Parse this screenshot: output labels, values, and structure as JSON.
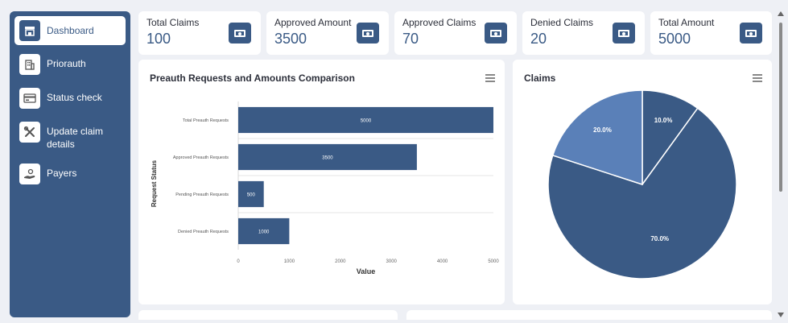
{
  "sidebar": {
    "items": [
      {
        "label": "Dashboard",
        "icon": "store-icon"
      },
      {
        "label": "Priorauth",
        "icon": "building-icon"
      },
      {
        "label": "Status check",
        "icon": "card-icon"
      },
      {
        "label": "Update claim details",
        "icon": "tools-icon"
      },
      {
        "label": "Payers",
        "icon": "hand-coin-icon"
      }
    ]
  },
  "kpis": [
    {
      "title": "Total Claims",
      "value": "100"
    },
    {
      "title": "Approved Amount",
      "value": "3500"
    },
    {
      "title": "Approved Claims",
      "value": "70"
    },
    {
      "title": "Denied Claims",
      "value": "20"
    },
    {
      "title": "Total Amount",
      "value": "5000"
    }
  ],
  "bar_card": {
    "title": "Preauth Requests and Amounts Comparison"
  },
  "pie_card": {
    "title": "Claims"
  },
  "colors": {
    "primary": "#3a5a85",
    "pie_light": "#5a80b8"
  },
  "chart_data": [
    {
      "type": "bar",
      "orientation": "horizontal",
      "title": "Preauth Requests and Amounts Comparison",
      "xlabel": "Value",
      "ylabel": "Request Status",
      "categories": [
        "Total Preauth Requests",
        "Approved Preauth Requests",
        "Pending Preauth Requests",
        "Denied Preauth Requests"
      ],
      "values": [
        5000,
        3500,
        500,
        1000
      ],
      "data_labels": [
        "5000",
        "3500",
        "500",
        "1000"
      ],
      "xlim": [
        0,
        5000
      ],
      "xticks": [
        "0",
        "1000",
        "2000",
        "3000",
        "4000",
        "5000"
      ],
      "grid": true
    },
    {
      "type": "pie",
      "title": "Claims",
      "values": [
        10,
        70,
        20
      ],
      "labels": [
        "10.0%",
        "70.0%",
        "20.0%"
      ],
      "colors": [
        "#3a5a85",
        "#3a5a85",
        "#5a80b8"
      ]
    }
  ]
}
